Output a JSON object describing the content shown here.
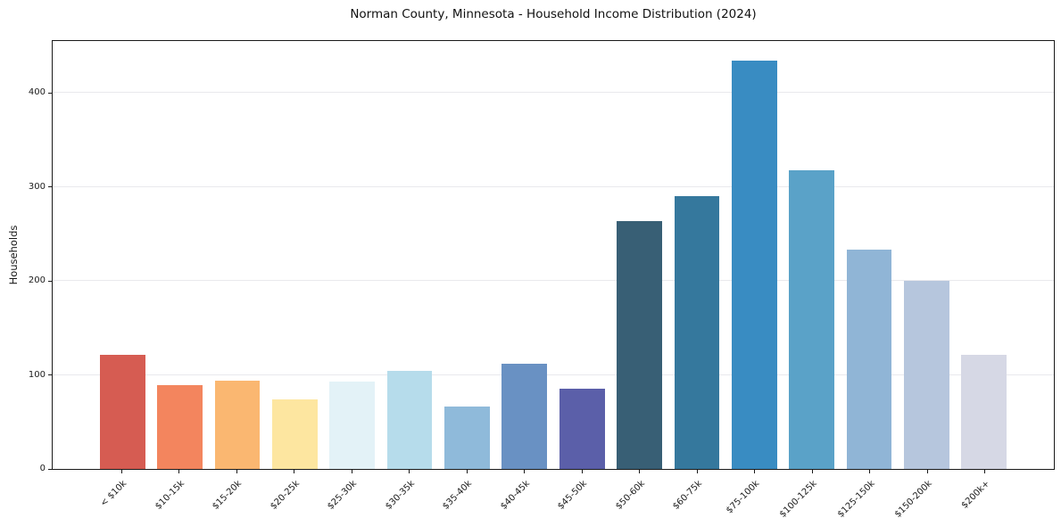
{
  "chart_data": {
    "type": "bar",
    "title": "Norman County, Minnesota - Household Income Distribution (2024)",
    "xlabel": "",
    "ylabel": "Households",
    "categories": [
      "< $10k",
      "$10-15k",
      "$15-20k",
      "$20-25k",
      "$25-30k",
      "$30-35k",
      "$35-40k",
      "$40-45k",
      "$45-50k",
      "$50-60k",
      "$60-75k",
      "$75-100k",
      "$100-125k",
      "$125-150k",
      "$150-200k",
      "$200k+"
    ],
    "values": [
      121,
      89,
      94,
      74,
      93,
      104,
      66,
      112,
      85,
      264,
      290,
      434,
      318,
      233,
      200,
      121
    ],
    "bar_colors": [
      "#d65c52",
      "#f3855e",
      "#fab771",
      "#fde6a0",
      "#e3f2f7",
      "#b6dceb",
      "#8fbada",
      "#6991c3",
      "#5b5fa9",
      "#385f75",
      "#35789d",
      "#398cc2",
      "#5aa2c8",
      "#90b5d6",
      "#b6c6dd",
      "#d6d8e5"
    ],
    "yticks": [
      0,
      100,
      200,
      300,
      400
    ],
    "ytick_labels": [
      "0",
      "100",
      "200",
      "300",
      "400"
    ],
    "ylim": [
      0,
      455
    ],
    "grid": "horizontal-light",
    "gridline_color": "#e9e9ed",
    "x_tick_rotation": 45,
    "legend": "none"
  }
}
